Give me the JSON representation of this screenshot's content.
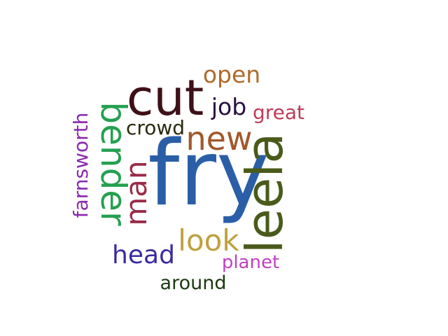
{
  "words": [
    {
      "id": "fry",
      "text": "fry",
      "color": "#2a5fa8"
    },
    {
      "id": "cut",
      "text": "cut",
      "color": "#3f1018"
    },
    {
      "id": "bender",
      "text": "bender",
      "color": "#24a050"
    },
    {
      "id": "leela",
      "text": "leela",
      "color": "#4a5a1a"
    },
    {
      "id": "new",
      "text": "new",
      "color": "#a0582a"
    },
    {
      "id": "man",
      "text": "man",
      "color": "#9a2a48"
    },
    {
      "id": "look",
      "text": "look",
      "color": "#c0a040"
    },
    {
      "id": "head",
      "text": "head",
      "color": "#3a2aa0"
    },
    {
      "id": "open",
      "text": "open",
      "color": "#b06a2a"
    },
    {
      "id": "job",
      "text": "job",
      "color": "#2a1040"
    },
    {
      "id": "great",
      "text": "great",
      "color": "#c03a5a"
    },
    {
      "id": "crowd",
      "text": "crowd",
      "color": "#2a2a10"
    },
    {
      "id": "farnsworth",
      "text": "farnsworth",
      "color": "#8a2ab0"
    },
    {
      "id": "planet",
      "text": "planet",
      "color": "#c040c0"
    },
    {
      "id": "around",
      "text": "around",
      "color": "#1a3a10"
    }
  ]
}
